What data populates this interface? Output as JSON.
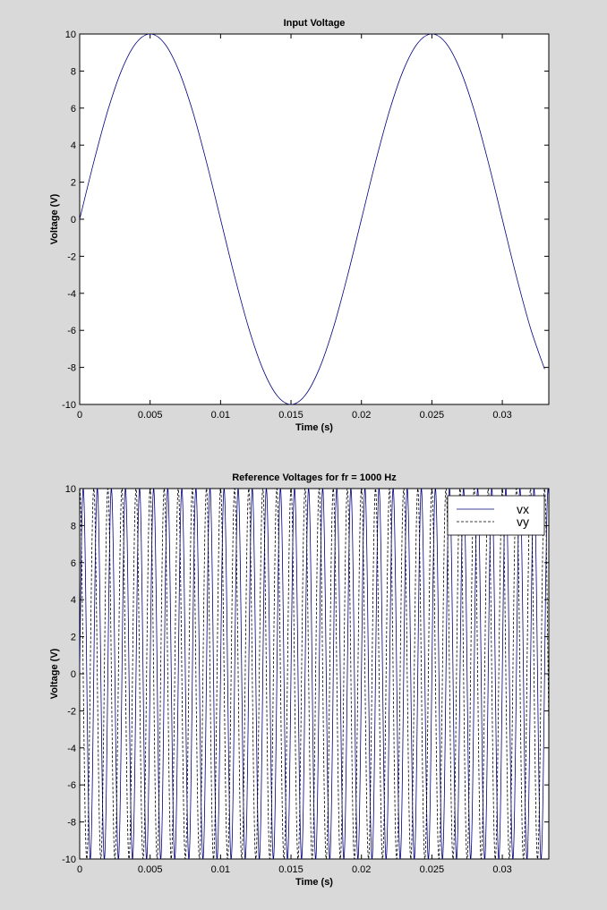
{
  "chart_data": [
    {
      "type": "line",
      "title": "Input Voltage",
      "xlabel": "Time (s)",
      "ylabel": "Voltage (V)",
      "xlim": [
        0,
        0.0333
      ],
      "ylim": [
        -10,
        10
      ],
      "x_ticks": [
        0,
        0.005,
        0.01,
        0.015,
        0.02,
        0.025,
        0.03
      ],
      "x_tick_labels": [
        "0",
        "0.005",
        "0.01",
        "0.015",
        "0.02",
        "0.025",
        "0.03"
      ],
      "y_ticks": [
        -10,
        -8,
        -6,
        -4,
        -2,
        0,
        2,
        4,
        6,
        8,
        10
      ],
      "y_tick_labels": [
        "-10",
        "-8",
        "-6",
        "-4",
        "-2",
        "0",
        "2",
        "4",
        "6",
        "8",
        "10"
      ],
      "grid": false,
      "legend": null,
      "series": [
        {
          "style": "solid",
          "color": "#00007f",
          "x": [
            0,
            0.001,
            0.002,
            0.003,
            0.004,
            0.005,
            0.006,
            0.007,
            0.008,
            0.009,
            0.01,
            0.011,
            0.012,
            0.013,
            0.014,
            0.015,
            0.016,
            0.017,
            0.018,
            0.019,
            0.02,
            0.021,
            0.022,
            0.023,
            0.024,
            0.025,
            0.026,
            0.027,
            0.028,
            0.029,
            0.03,
            0.031,
            0.032,
            0.033
          ],
          "values": [
            0,
            3.09,
            5.88,
            8.09,
            9.51,
            10,
            9.51,
            8.09,
            5.88,
            3.09,
            0,
            -3.09,
            -5.88,
            -8.09,
            -9.51,
            -10,
            -9.51,
            -8.09,
            -5.88,
            -3.09,
            0,
            3.09,
            5.88,
            8.09,
            9.51,
            10,
            9.51,
            8.09,
            5.88,
            3.09,
            0,
            -3.09,
            -5.88,
            -8.09
          ]
        }
      ]
    },
    {
      "type": "line",
      "title": "Reference Voltages for fr = 1000 Hz",
      "xlabel": "Time (s)",
      "ylabel": "Voltage (V)",
      "xlim": [
        0,
        0.0333
      ],
      "ylim": [
        -10,
        10
      ],
      "x_ticks": [
        0,
        0.005,
        0.01,
        0.015,
        0.02,
        0.025,
        0.03
      ],
      "x_tick_labels": [
        "0",
        "0.005",
        "0.01",
        "0.015",
        "0.02",
        "0.025",
        "0.03"
      ],
      "y_ticks": [
        -10,
        -8,
        -6,
        -4,
        -2,
        0,
        2,
        4,
        6,
        8,
        10
      ],
      "y_tick_labels": [
        "-10",
        "-8",
        "-6",
        "-4",
        "-2",
        "0",
        "2",
        "4",
        "6",
        "8",
        "10"
      ],
      "grid": false,
      "legend": "top-right",
      "series": [
        {
          "name": "vx",
          "style": "solid",
          "color": "#00007f",
          "frequency_hz": 1000,
          "amplitude": 10,
          "phase_deg": 0,
          "x_range": [
            0,
            0.0333
          ]
        },
        {
          "name": "vy",
          "style": "dashed",
          "color": "#000000",
          "frequency_hz": 1000,
          "amplitude": 10,
          "phase_deg": 90,
          "x_range": [
            0,
            0.0333
          ]
        }
      ]
    }
  ]
}
